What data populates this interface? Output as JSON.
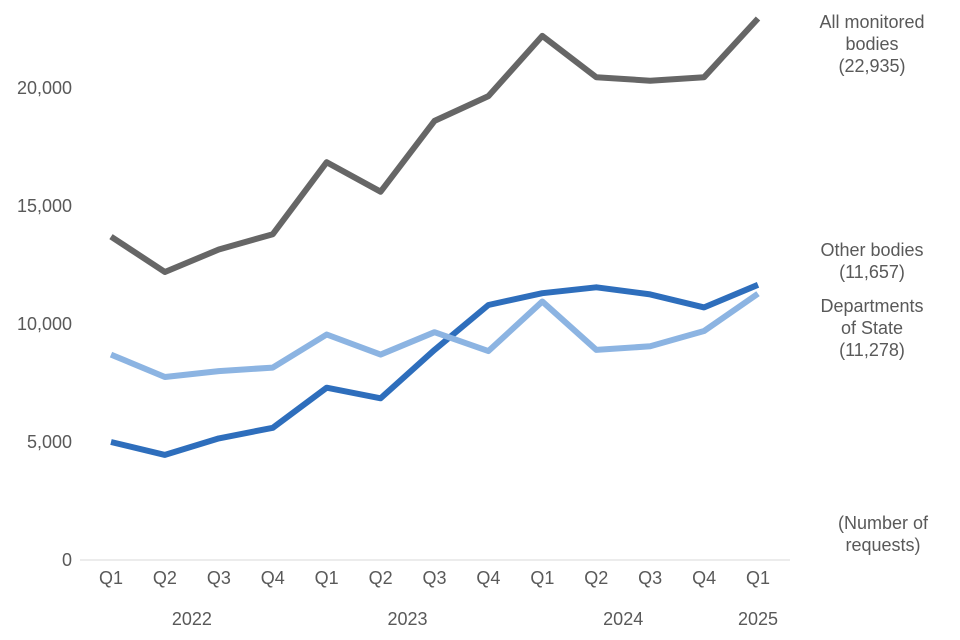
{
  "chart_data": {
    "type": "line",
    "categories": [
      "Q1",
      "Q2",
      "Q3",
      "Q4",
      "Q1",
      "Q2",
      "Q3",
      "Q4",
      "Q1",
      "Q2",
      "Q3",
      "Q4",
      "Q1"
    ],
    "year_labels": [
      {
        "label": "2022",
        "from": 0,
        "to": 3
      },
      {
        "label": "2023",
        "from": 4,
        "to": 7
      },
      {
        "label": "2024",
        "from": 8,
        "to": 11
      },
      {
        "label": "2025",
        "from": 12,
        "to": 12
      }
    ],
    "ylim": [
      0,
      23000
    ],
    "yticks": [
      0,
      5000,
      10000,
      15000,
      20000
    ],
    "ytick_labels": [
      "0",
      "5,000",
      "10,000",
      "15,000",
      "20,000"
    ],
    "grid": false,
    "unit_note": [
      "(Number of",
      "requests)"
    ],
    "series": [
      {
        "label_lines": [
          "All monitored",
          "bodies",
          "(22,935)"
        ],
        "color": "#666666",
        "values": [
          13700,
          12200,
          13150,
          13800,
          16850,
          15600,
          18600,
          19650,
          22200,
          20450,
          20300,
          20450,
          22935
        ]
      },
      {
        "label_lines": [
          "Other bodies",
          "(11,657)"
        ],
        "color": "#2e6ebc",
        "values": [
          5000,
          4450,
          5150,
          5600,
          7300,
          6850,
          8900,
          10800,
          11300,
          11550,
          11250,
          10700,
          11657
        ]
      },
      {
        "label_lines": [
          "Departments",
          "of State",
          "(11,278)"
        ],
        "color": "#8cb4e2",
        "values": [
          8700,
          7750,
          8000,
          8150,
          9550,
          8700,
          9650,
          8850,
          10950,
          8900,
          9050,
          9700,
          11278
        ]
      }
    ]
  }
}
